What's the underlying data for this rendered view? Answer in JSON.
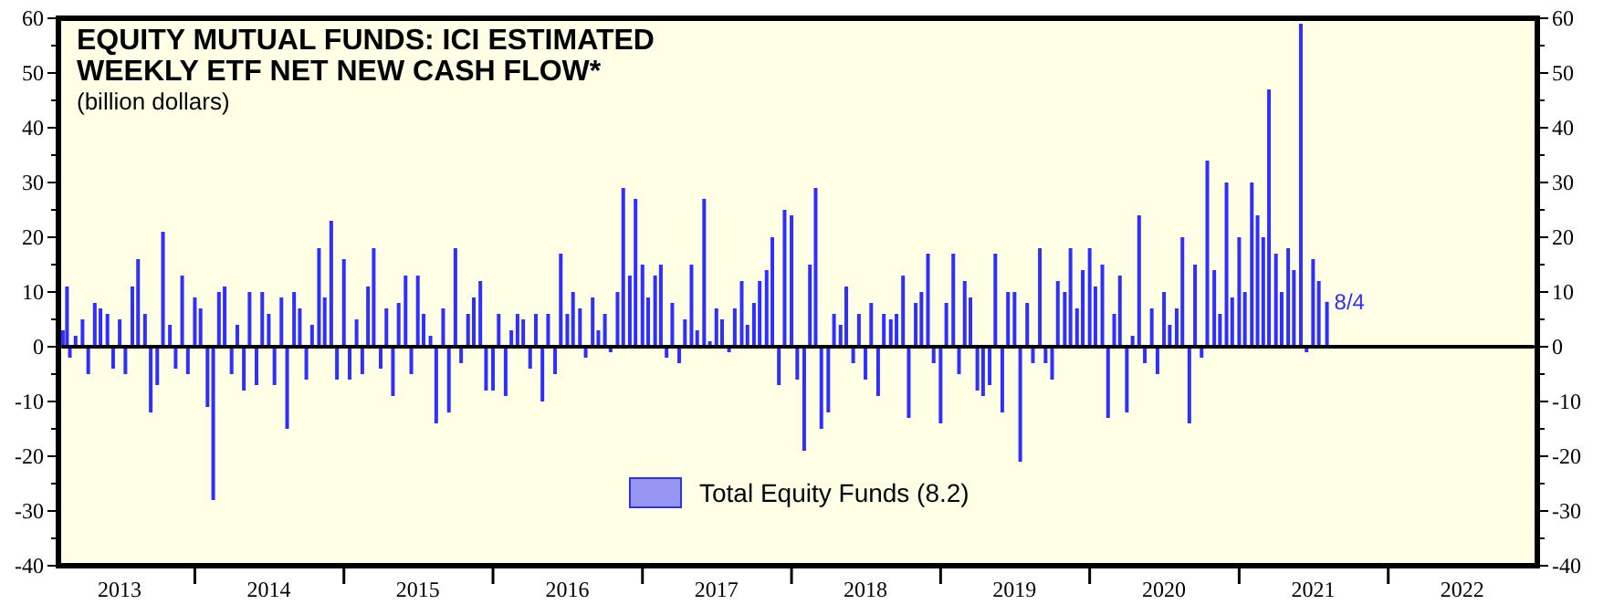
{
  "chart_data": {
    "type": "bar",
    "title": "EQUITY MUTUAL FUNDS: ICI ESTIMATED\nWEEKLY ETF NET NEW CASH FLOW*",
    "subtitle": "(billion dollars)",
    "x": [
      "2013-02-12",
      "2013-02-22",
      "2013-03-01",
      "2013-03-15",
      "2013-04-01",
      "2013-04-15",
      "2013-05-01",
      "2013-05-15",
      "2013-06-01",
      "2013-06-15",
      "2013-07-01",
      "2013-07-15",
      "2013-08-01",
      "2013-08-15",
      "2013-09-01",
      "2013-09-15",
      "2013-10-01",
      "2013-10-15",
      "2013-11-01",
      "2013-11-15",
      "2013-12-01",
      "2013-12-15",
      "2014-01-01",
      "2014-01-15",
      "2014-02-01",
      "2014-02-15",
      "2014-03-01",
      "2014-03-15",
      "2014-04-01",
      "2014-04-15",
      "2014-05-01",
      "2014-05-15",
      "2014-06-01",
      "2014-06-15",
      "2014-07-01",
      "2014-07-15",
      "2014-08-01",
      "2014-08-15",
      "2014-09-01",
      "2014-09-15",
      "2014-10-01",
      "2014-10-15",
      "2014-11-01",
      "2014-11-15",
      "2014-12-01",
      "2014-12-15",
      "2015-01-01",
      "2015-01-15",
      "2015-02-01",
      "2015-02-15",
      "2015-03-01",
      "2015-03-15",
      "2015-04-01",
      "2015-04-15",
      "2015-05-01",
      "2015-05-15",
      "2015-06-01",
      "2015-06-15",
      "2015-07-01",
      "2015-07-15",
      "2015-08-01",
      "2015-08-15",
      "2015-09-01",
      "2015-09-15",
      "2015-10-01",
      "2015-10-15",
      "2015-11-01",
      "2015-11-15",
      "2015-12-01",
      "2015-12-15",
      "2016-01-01",
      "2016-01-15",
      "2016-02-01",
      "2016-02-15",
      "2016-03-01",
      "2016-03-15",
      "2016-04-01",
      "2016-04-15",
      "2016-05-01",
      "2016-05-15",
      "2016-06-01",
      "2016-06-15",
      "2016-07-01",
      "2016-07-15",
      "2016-08-01",
      "2016-08-15",
      "2016-09-01",
      "2016-09-15",
      "2016-10-01",
      "2016-10-15",
      "2016-11-01",
      "2016-11-15",
      "2016-12-01",
      "2016-12-15",
      "2017-01-01",
      "2017-01-15",
      "2017-02-01",
      "2017-02-15",
      "2017-03-01",
      "2017-03-15",
      "2017-04-01",
      "2017-04-15",
      "2017-05-01",
      "2017-05-15",
      "2017-06-01",
      "2017-06-15",
      "2017-07-01",
      "2017-07-15",
      "2017-08-01",
      "2017-08-15",
      "2017-09-01",
      "2017-09-15",
      "2017-10-01",
      "2017-10-15",
      "2017-11-01",
      "2017-11-15",
      "2017-12-01",
      "2017-12-15",
      "2018-01-01",
      "2018-01-15",
      "2018-02-01",
      "2018-02-15",
      "2018-03-01",
      "2018-03-15",
      "2018-04-01",
      "2018-04-15",
      "2018-05-01",
      "2018-05-15",
      "2018-06-01",
      "2018-06-15",
      "2018-07-01",
      "2018-07-15",
      "2018-08-01",
      "2018-08-15",
      "2018-09-01",
      "2018-09-15",
      "2018-10-01",
      "2018-10-15",
      "2018-11-01",
      "2018-11-15",
      "2018-12-01",
      "2018-12-15",
      "2019-01-01",
      "2019-01-15",
      "2019-02-01",
      "2019-02-15",
      "2019-03-01",
      "2019-03-15",
      "2019-04-01",
      "2019-04-15",
      "2019-05-01",
      "2019-05-15",
      "2019-06-01",
      "2019-06-15",
      "2019-07-01",
      "2019-07-15",
      "2019-08-01",
      "2019-08-15",
      "2019-09-01",
      "2019-09-15",
      "2019-10-01",
      "2019-10-15",
      "2019-11-01",
      "2019-11-15",
      "2019-12-01",
      "2019-12-15",
      "2020-01-01",
      "2020-01-15",
      "2020-02-01",
      "2020-02-15",
      "2020-03-01",
      "2020-03-15",
      "2020-04-01",
      "2020-04-15",
      "2020-05-01",
      "2020-05-15",
      "2020-06-01",
      "2020-06-15",
      "2020-07-01",
      "2020-07-15",
      "2020-08-01",
      "2020-08-15",
      "2020-09-01",
      "2020-09-15",
      "2020-10-01",
      "2020-10-15",
      "2020-11-01",
      "2020-11-15",
      "2020-12-01",
      "2020-12-15",
      "2021-01-01",
      "2021-01-15",
      "2021-02-01",
      "2021-02-15",
      "2021-03-01",
      "2021-03-15",
      "2021-04-01",
      "2021-04-15",
      "2021-05-01",
      "2021-05-15",
      "2021-06-01",
      "2021-06-15",
      "2021-07-01",
      "2021-07-15",
      "2021-08-04"
    ],
    "series": [
      {
        "name": "Total Equity Funds (8.2)",
        "color": "#2f2fff",
        "values": [
          3,
          11,
          -2,
          2,
          5,
          -5,
          8,
          7,
          6,
          -4,
          5,
          -5,
          11,
          16,
          6,
          -12,
          -7,
          21,
          4,
          -4,
          13,
          -5,
          9,
          7,
          -11,
          -28,
          10,
          11,
          -5,
          4,
          -8,
          10,
          -7,
          10,
          6,
          -7,
          9,
          -15,
          10,
          7,
          -6,
          4,
          18,
          9,
          23,
          -6,
          16,
          -6,
          5,
          -5,
          11,
          18,
          -4,
          7,
          -9,
          8,
          13,
          -5,
          13,
          6,
          2,
          -14,
          7,
          -12,
          18,
          -3,
          6,
          9,
          12,
          -8,
          -8,
          6,
          -9,
          3,
          6,
          5,
          -4,
          6,
          -10,
          6,
          -5,
          17,
          6,
          10,
          7,
          -2,
          9,
          3,
          6,
          -1,
          10,
          29,
          13,
          27,
          15,
          9,
          13,
          15,
          -2,
          8,
          -3,
          5,
          15,
          3,
          27,
          1,
          7,
          5,
          -1,
          7,
          12,
          4,
          8,
          12,
          14,
          20,
          -7,
          25,
          24,
          -6,
          -19,
          15,
          29,
          -15,
          -12,
          6,
          4,
          11,
          -3,
          6,
          -6,
          8,
          -9,
          6,
          5,
          6,
          13,
          -13,
          8,
          10,
          17,
          -3,
          -14,
          8,
          17,
          -5,
          12,
          9,
          -8,
          -9,
          -7,
          17,
          -12,
          10,
          10,
          -21,
          8,
          -3,
          18,
          -3,
          -6,
          12,
          10,
          18,
          7,
          14,
          18,
          11,
          15,
          -13,
          6,
          13,
          -12,
          2,
          24,
          -3,
          7,
          -5,
          10,
          4,
          7,
          20,
          -14,
          15,
          -2,
          34,
          14,
          6,
          30,
          9,
          20,
          10,
          30,
          24,
          20,
          47,
          17,
          10,
          18,
          14,
          59,
          -1,
          16,
          12,
          8.2
        ]
      }
    ],
    "xlim": [
      "2013-02-01",
      "2023-01-01"
    ],
    "xticks": [
      {
        "value": "2013-07-01",
        "label": "2013"
      },
      {
        "value": "2014-01-01",
        "label": null
      },
      {
        "value": "2014-07-01",
        "label": "2014"
      },
      {
        "value": "2015-01-01",
        "label": null
      },
      {
        "value": "2015-07-01",
        "label": "2015"
      },
      {
        "value": "2016-01-01",
        "label": null
      },
      {
        "value": "2016-07-01",
        "label": "2016"
      },
      {
        "value": "2017-01-01",
        "label": null
      },
      {
        "value": "2017-07-01",
        "label": "2017"
      },
      {
        "value": "2018-01-01",
        "label": null
      },
      {
        "value": "2018-07-01",
        "label": "2018"
      },
      {
        "value": "2019-01-01",
        "label": null
      },
      {
        "value": "2019-07-01",
        "label": "2019"
      },
      {
        "value": "2020-01-01",
        "label": null
      },
      {
        "value": "2020-07-01",
        "label": "2020"
      },
      {
        "value": "2021-01-01",
        "label": null
      },
      {
        "value": "2021-07-01",
        "label": "2021"
      },
      {
        "value": "2022-01-01",
        "label": null
      },
      {
        "value": "2022-07-01",
        "label": "2022"
      }
    ],
    "ylim": [
      -40,
      60
    ],
    "yticks": [
      -40,
      -30,
      -20,
      -10,
      0,
      10,
      20,
      30,
      40,
      50,
      60
    ],
    "y2lim": [
      -40,
      60
    ],
    "y2ticks": [
      -40,
      -30,
      -20,
      -10,
      0,
      10,
      20,
      30,
      40,
      50,
      60
    ],
    "ref_lines": [
      {
        "axis": "y",
        "value": 0,
        "color": "#000000"
      }
    ],
    "annotations": [
      {
        "text": "8/4",
        "x": "2021-08-04",
        "y": 8.2
      }
    ],
    "legend": "bottom",
    "grid": false
  }
}
